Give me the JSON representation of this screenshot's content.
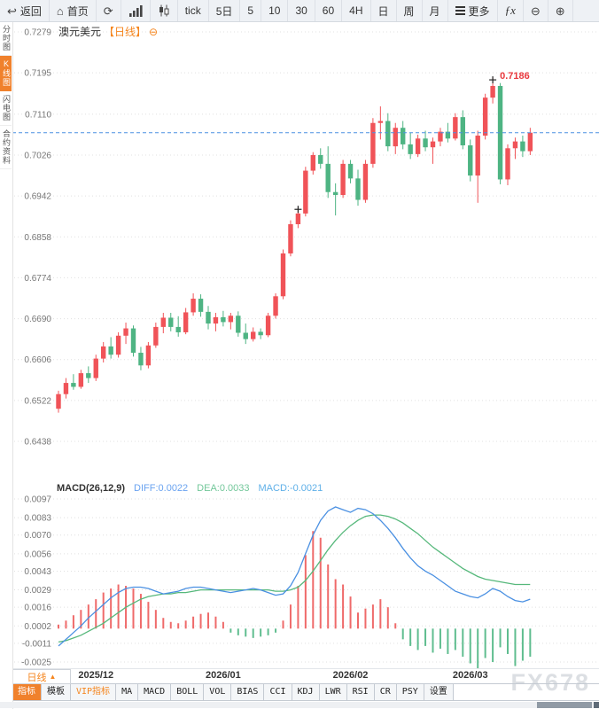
{
  "toolbar": {
    "items": [
      {
        "name": "back-button",
        "glyph": "↩",
        "label": "返回"
      },
      {
        "name": "home-button",
        "glyph": "⌂",
        "label": "首页"
      },
      {
        "name": "refresh-button",
        "glyph": "⟳",
        "label": ""
      },
      {
        "name": "bar-chart-button",
        "icon": "bars",
        "label": ""
      },
      {
        "name": "candlestick-button",
        "icon": "candles",
        "label": ""
      },
      {
        "name": "tick-button",
        "label": "tick"
      },
      {
        "name": "period-5d-button",
        "label": "5日"
      },
      {
        "name": "period-5-button",
        "label": "5"
      },
      {
        "name": "period-10-button",
        "label": "10"
      },
      {
        "name": "period-30-button",
        "label": "30"
      },
      {
        "name": "period-60-button",
        "label": "60"
      },
      {
        "name": "period-4h-button",
        "label": "4H"
      },
      {
        "name": "period-day-button",
        "label": "日"
      },
      {
        "name": "period-week-button",
        "label": "周"
      },
      {
        "name": "period-month-button",
        "label": "月"
      },
      {
        "name": "more-button",
        "icon": "burger",
        "label": "更多"
      },
      {
        "name": "fx-button",
        "label": "ƒx",
        "italic": true
      },
      {
        "name": "zoom-out-button",
        "glyph": "⊖",
        "label": ""
      },
      {
        "name": "zoom-in-button",
        "glyph": "⊕",
        "label": ""
      }
    ]
  },
  "sidebar": {
    "items": [
      {
        "label": "分时图",
        "active": false
      },
      {
        "label": "K线图",
        "active": true
      },
      {
        "label": "闪电图",
        "active": false
      },
      {
        "label": "合约资料",
        "active": false
      }
    ]
  },
  "chart": {
    "title": "澳元美元",
    "timeframe_tag": "【日线】",
    "collapse_icon": "⊖"
  },
  "footer": {
    "period_tab": {
      "label": "日线",
      "arrow": "▲"
    },
    "indicator_tabs": [
      {
        "label": "指标",
        "active": true
      },
      {
        "label": "模板"
      },
      {
        "label": "VIP指标",
        "vip": true
      },
      {
        "label": "MA"
      },
      {
        "label": "MACD"
      },
      {
        "label": "BOLL"
      },
      {
        "label": "VOL"
      },
      {
        "label": "BIAS"
      },
      {
        "label": "CCI"
      },
      {
        "label": "KDJ"
      },
      {
        "label": "LWR"
      },
      {
        "label": "RSI"
      },
      {
        "label": "CR"
      },
      {
        "label": "PSY"
      },
      {
        "label": "设置"
      }
    ],
    "watermark": "FX678"
  },
  "chart_data": {
    "type": "candlestick+macd",
    "symbol": "澳元美元",
    "period": "日线",
    "colors": {
      "up": "#f05358",
      "down": "#4eb483",
      "diff_line": "#4a90e2",
      "dea_line": "#56b87b",
      "hist_up": "#ef6a6a",
      "hist_down": "#5fbd8f",
      "current_price_line": "#4a90e2",
      "high_label": "#e8383d",
      "grid": "#e0e0e0",
      "axis_text": "#777777"
    },
    "price_panel": {
      "y_ticks": [
        0.7279,
        0.7195,
        0.711,
        0.7026,
        0.6942,
        0.6858,
        0.6774,
        0.669,
        0.6606,
        0.6522,
        0.6438
      ],
      "current_price": 0.7072,
      "high_label": {
        "text": "0.7186",
        "value": 0.7186,
        "candle_index": 58
      },
      "cross_markers": [
        {
          "candle_index": 32,
          "price": 0.692
        },
        {
          "candle_index": 58,
          "price": 0.7186
        }
      ],
      "months": [
        {
          "label": "2025/12",
          "candle_index": 5
        },
        {
          "label": "2026/01",
          "candle_index": 22
        },
        {
          "label": "2026/02",
          "candle_index": 39
        },
        {
          "label": "2026/03",
          "candle_index": 55
        }
      ],
      "candles": [
        [
          0.6505,
          0.6542,
          0.6497,
          0.6535
        ],
        [
          0.6535,
          0.6568,
          0.6526,
          0.6558
        ],
        [
          0.6558,
          0.6576,
          0.6544,
          0.655
        ],
        [
          0.655,
          0.6585,
          0.6546,
          0.6578
        ],
        [
          0.6578,
          0.6592,
          0.6558,
          0.6568
        ],
        [
          0.6568,
          0.6616,
          0.6562,
          0.6608
        ],
        [
          0.6608,
          0.6642,
          0.66,
          0.6633
        ],
        [
          0.6633,
          0.6652,
          0.6608,
          0.6616
        ],
        [
          0.6616,
          0.6662,
          0.661,
          0.6655
        ],
        [
          0.6655,
          0.6682,
          0.6638,
          0.667
        ],
        [
          0.667,
          0.6676,
          0.6612,
          0.662
        ],
        [
          0.662,
          0.6632,
          0.6584,
          0.6594
        ],
        [
          0.6594,
          0.6642,
          0.6588,
          0.6635
        ],
        [
          0.6635,
          0.6682,
          0.663,
          0.6673
        ],
        [
          0.6673,
          0.6702,
          0.666,
          0.6692
        ],
        [
          0.6692,
          0.6702,
          0.6664,
          0.6673
        ],
        [
          0.6673,
          0.6695,
          0.6653,
          0.6662
        ],
        [
          0.6662,
          0.6712,
          0.6658,
          0.6703
        ],
        [
          0.6703,
          0.6742,
          0.6696,
          0.6731
        ],
        [
          0.6731,
          0.674,
          0.6694,
          0.6704
        ],
        [
          0.6704,
          0.6716,
          0.6668,
          0.668
        ],
        [
          0.668,
          0.6702,
          0.6664,
          0.6693
        ],
        [
          0.6693,
          0.6706,
          0.6674,
          0.6683
        ],
        [
          0.6683,
          0.6702,
          0.6668,
          0.6696
        ],
        [
          0.6696,
          0.6705,
          0.6653,
          0.6661
        ],
        [
          0.6661,
          0.668,
          0.6638,
          0.6648
        ],
        [
          0.6648,
          0.6672,
          0.6643,
          0.6663
        ],
        [
          0.6663,
          0.667,
          0.6648,
          0.6656
        ],
        [
          0.6656,
          0.6702,
          0.6652,
          0.6696
        ],
        [
          0.6696,
          0.6742,
          0.669,
          0.6736
        ],
        [
          0.6736,
          0.6832,
          0.673,
          0.6824
        ],
        [
          0.6824,
          0.6892,
          0.6818,
          0.6884
        ],
        [
          0.6884,
          0.6918,
          0.6876,
          0.6906
        ],
        [
          0.6906,
          0.7002,
          0.69,
          0.6994
        ],
        [
          0.6994,
          0.7032,
          0.6986,
          0.7026
        ],
        [
          0.7026,
          0.704,
          0.6998,
          0.7008
        ],
        [
          0.7008,
          0.7044,
          0.6938,
          0.695
        ],
        [
          0.695,
          0.6968,
          0.6902,
          0.6944
        ],
        [
          0.6944,
          0.7016,
          0.6938,
          0.7008
        ],
        [
          0.7008,
          0.7016,
          0.6968,
          0.6978
        ],
        [
          0.6978,
          0.6996,
          0.6922,
          0.6934
        ],
        [
          0.6934,
          0.7016,
          0.6928,
          0.7008
        ],
        [
          0.7008,
          0.7102,
          0.7,
          0.7092
        ],
        [
          0.7092,
          0.7126,
          0.7058,
          0.7096
        ],
        [
          0.7096,
          0.7112,
          0.7034,
          0.7044
        ],
        [
          0.7044,
          0.7092,
          0.7028,
          0.7082
        ],
        [
          0.7082,
          0.7096,
          0.7038,
          0.7048
        ],
        [
          0.7048,
          0.7072,
          0.7018,
          0.7028
        ],
        [
          0.7028,
          0.7068,
          0.7022,
          0.706
        ],
        [
          0.706,
          0.7076,
          0.7034,
          0.7042
        ],
        [
          0.7042,
          0.7062,
          0.7008,
          0.7054
        ],
        [
          0.7054,
          0.7082,
          0.7044,
          0.7074
        ],
        [
          0.7074,
          0.7092,
          0.7052,
          0.706
        ],
        [
          0.706,
          0.7112,
          0.7056,
          0.7104
        ],
        [
          0.7104,
          0.7118,
          0.7038,
          0.7046
        ],
        [
          0.7046,
          0.7058,
          0.6972,
          0.6984
        ],
        [
          0.6984,
          0.7076,
          0.6928,
          0.7066
        ],
        [
          0.7066,
          0.7152,
          0.7058,
          0.7144
        ],
        [
          0.7144,
          0.7186,
          0.7132,
          0.7168
        ],
        [
          0.7168,
          0.7174,
          0.6966,
          0.6976
        ],
        [
          0.6976,
          0.7048,
          0.6964,
          0.704
        ],
        [
          0.704,
          0.7062,
          0.7018,
          0.7054
        ],
        [
          0.7054,
          0.7066,
          0.7022,
          0.7034
        ],
        [
          0.7034,
          0.7082,
          0.7026,
          0.7072
        ]
      ]
    },
    "macd_panel": {
      "param_label": "MACD(26,12,9)",
      "diff_label": "DIFF:0.0022",
      "dea_label": "DEA:0.0033",
      "macd_label": "MACD:-0.0021",
      "y_ticks": [
        0.0097,
        0.0083,
        0.007,
        0.0056,
        0.0043,
        0.0029,
        0.0016,
        0.0002,
        -0.0011,
        -0.0025
      ],
      "diff": [
        -0.0013,
        -0.0008,
        -0.0003,
        0.0002,
        0.0008,
        0.0013,
        0.0018,
        0.0023,
        0.0027,
        0.003,
        0.0031,
        0.0031,
        0.003,
        0.0028,
        0.0026,
        0.0027,
        0.0028,
        0.003,
        0.0031,
        0.0031,
        0.003,
        0.0029,
        0.0028,
        0.0027,
        0.0028,
        0.0029,
        0.003,
        0.0029,
        0.0027,
        0.0025,
        0.0026,
        0.0032,
        0.0042,
        0.0056,
        0.007,
        0.0081,
        0.0088,
        0.0091,
        0.0089,
        0.0087,
        0.009,
        0.0089,
        0.0086,
        0.0081,
        0.0075,
        0.0068,
        0.006,
        0.0053,
        0.0047,
        0.0043,
        0.004,
        0.0036,
        0.0032,
        0.0028,
        0.0026,
        0.0024,
        0.0023,
        0.0026,
        0.003,
        0.0028,
        0.0024,
        0.0021,
        0.002,
        0.0022
      ],
      "dea": [
        -0.001,
        -0.0009,
        -0.0007,
        -0.0005,
        -0.0002,
        0.0001,
        0.0004,
        0.0008,
        0.0012,
        0.0016,
        0.0019,
        0.0022,
        0.0024,
        0.0025,
        0.0026,
        0.0026,
        0.0027,
        0.0027,
        0.0028,
        0.0029,
        0.0029,
        0.0029,
        0.0029,
        0.0029,
        0.0029,
        0.0029,
        0.0029,
        0.0029,
        0.0029,
        0.0028,
        0.0028,
        0.0029,
        0.0031,
        0.0036,
        0.0043,
        0.0051,
        0.0059,
        0.0066,
        0.0072,
        0.0077,
        0.0081,
        0.0084,
        0.0085,
        0.0085,
        0.0084,
        0.0082,
        0.0079,
        0.0075,
        0.0071,
        0.0066,
        0.0061,
        0.0057,
        0.0053,
        0.0049,
        0.0045,
        0.0042,
        0.0039,
        0.0037,
        0.0036,
        0.0035,
        0.0034,
        0.0033,
        0.0033,
        0.0033
      ],
      "hist": [
        0.0003,
        0.0006,
        0.001,
        0.0014,
        0.0018,
        0.0022,
        0.0027,
        0.003,
        0.0033,
        0.0032,
        0.003,
        0.0026,
        0.002,
        0.0014,
        0.0008,
        0.0005,
        0.0004,
        0.0006,
        0.0009,
        0.0011,
        0.0012,
        0.0009,
        0.0005,
        -0.0003,
        -0.0005,
        -0.0006,
        -0.0007,
        -0.0006,
        -0.0005,
        -0.0003,
        0.0006,
        0.0018,
        0.0032,
        0.0055,
        0.0073,
        0.0068,
        0.0048,
        0.0037,
        0.0033,
        0.0024,
        0.0012,
        0.0015,
        0.0018,
        0.0022,
        0.0016,
        0.0004,
        -0.0008,
        -0.0013,
        -0.0016,
        -0.0013,
        -0.0018,
        -0.0015,
        -0.0019,
        -0.0016,
        -0.0021,
        -0.0026,
        -0.003,
        -0.0022,
        -0.0025,
        -0.0014,
        -0.0019,
        -0.0028,
        -0.0024,
        -0.0021
      ]
    }
  }
}
